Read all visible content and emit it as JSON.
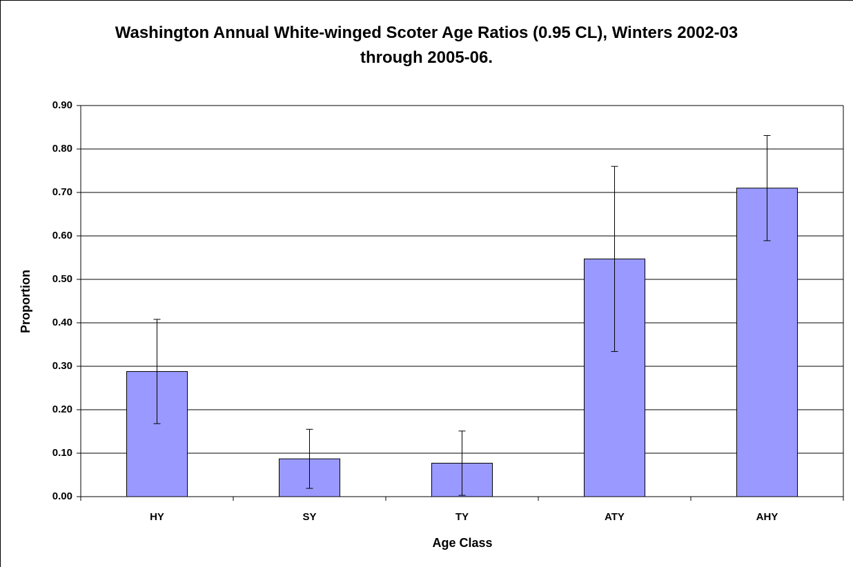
{
  "chart_data": {
    "type": "bar",
    "title": "Washington Annual White-winged Scoter Age Ratios (0.95 CL), Winters 2002-03 through 2005-06.",
    "x_label": "Age Class",
    "y_label": "Proportion",
    "categories": [
      "HY",
      "SY",
      "TY",
      "ATY",
      "AHY"
    ],
    "values": [
      0.288,
      0.087,
      0.077,
      0.547,
      0.71
    ],
    "errors": [
      0.12,
      0.068,
      0.074,
      0.213,
      0.121
    ],
    "color": "#9999ff",
    "ylim": [
      0,
      0.9
    ],
    "yticks": [
      {
        "value": 0,
        "label": "0.00"
      },
      {
        "value": 0.1,
        "label": "0.10"
      },
      {
        "value": 0.2,
        "label": "0.20"
      },
      {
        "value": 0.3,
        "label": "0.30"
      },
      {
        "value": 0.4,
        "label": "0.40"
      },
      {
        "value": 0.5,
        "label": "0.50"
      },
      {
        "value": 0.6,
        "label": "0.60"
      },
      {
        "value": 0.7,
        "label": "0.70"
      },
      {
        "value": 0.8,
        "label": "0.80"
      },
      {
        "value": 0.9,
        "label": "0.90"
      }
    ],
    "grid": true
  }
}
